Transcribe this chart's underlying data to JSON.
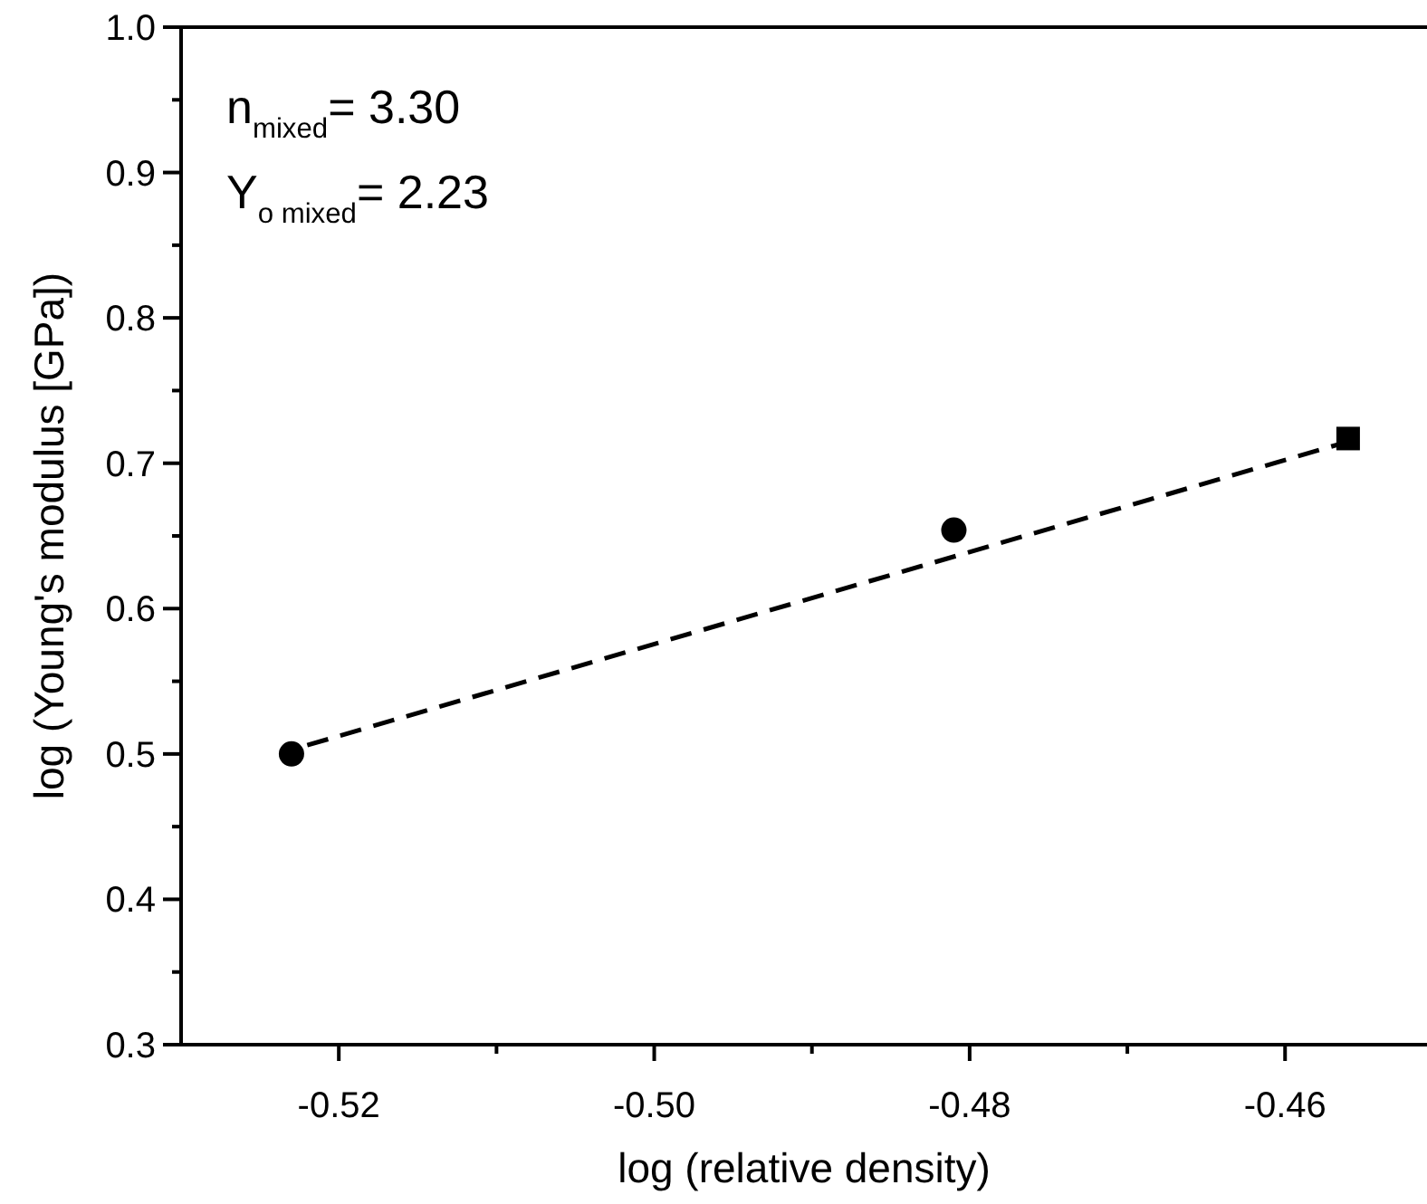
{
  "chart_data": {
    "type": "scatter",
    "xlabel": "log (relative density)",
    "ylabel": "log (Young's modulus [GPa])",
    "annotations": [
      "n$_{mixed}$= 3.30",
      "Y$_{o mixed}$= 2.23"
    ],
    "xlim": [
      -0.53,
      -0.451
    ],
    "ylim": [
      0.3,
      1.0
    ],
    "xticks": [
      -0.52,
      {
        "value": -0.51,
        "label": null
      },
      {
        "value": -0.5,
        "label": "-0.50"
      },
      {
        "value": -0.49,
        "label": null
      },
      -0.48,
      {
        "value": -0.47,
        "label": null
      },
      -0.46
    ],
    "yticks": [
      0.3,
      {
        "value": 0.35,
        "label": null
      },
      0.4,
      {
        "value": 0.45,
        "label": null
      },
      0.5,
      {
        "value": 0.55,
        "label": null
      },
      0.6,
      {
        "value": 0.65,
        "label": null
      },
      0.7,
      {
        "value": 0.75,
        "label": null
      },
      0.8,
      {
        "value": 0.85,
        "label": null
      },
      0.9,
      {
        "value": 0.95,
        "label": null
      },
      {
        "value": 1,
        "label": "1.0"
      }
    ],
    "grid": false,
    "series": [
      {
        "color": "#000000",
        "marker": "circle",
        "x": [
          -0.523,
          -0.481
        ],
        "values": [
          0.5,
          0.654
        ]
      },
      {
        "color": "#000000",
        "marker": "square",
        "x": [
          -0.456
        ],
        "values": [
          0.717
        ]
      },
      {
        "type": "line",
        "color": "#000000",
        "marker": "none",
        "line_style": "dashed",
        "x": [
          -0.522,
          -0.4566
        ],
        "values": [
          0.506,
          0.713
        ]
      }
    ]
  }
}
